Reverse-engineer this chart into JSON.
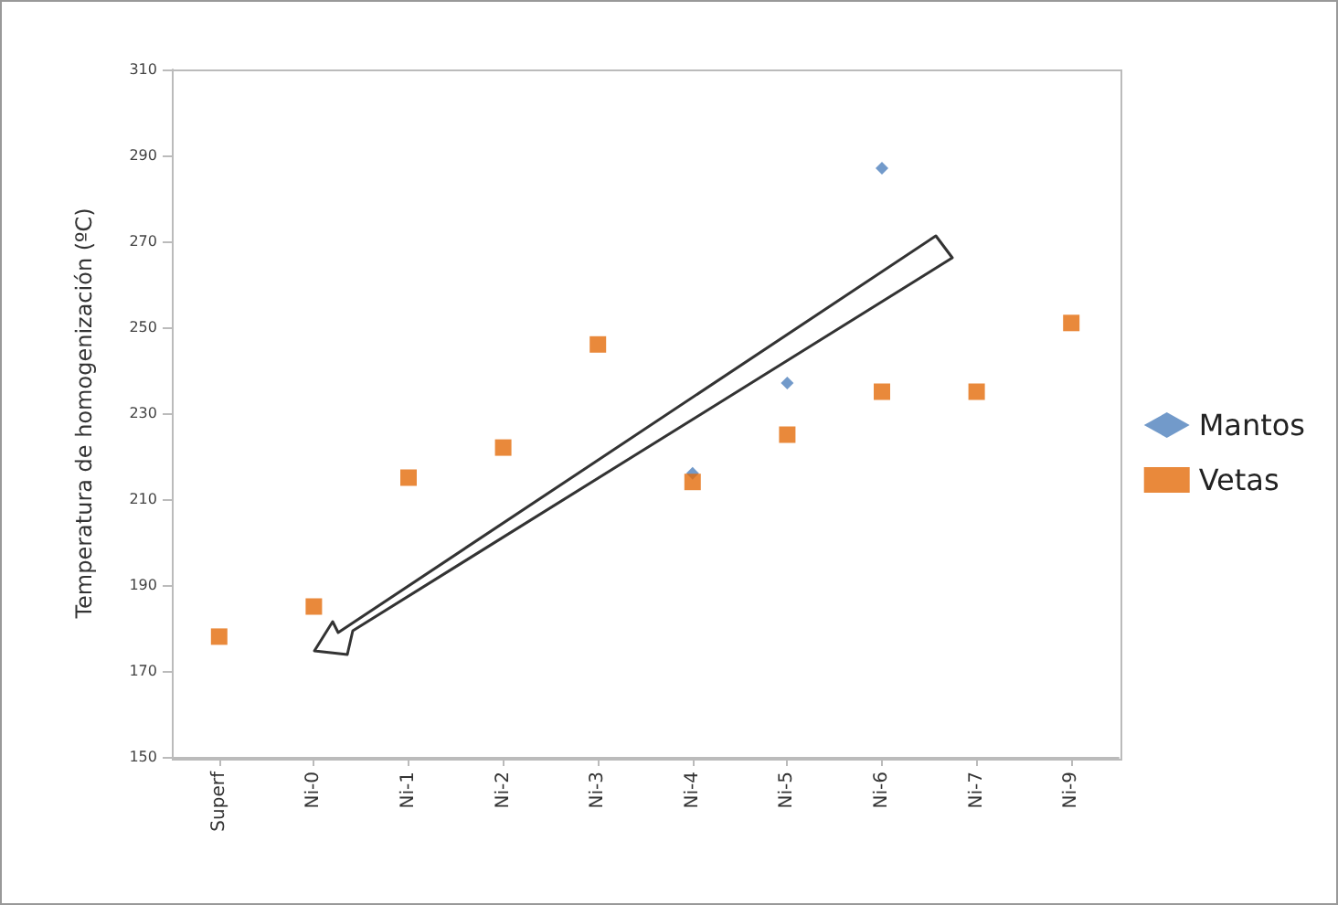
{
  "chart_data": {
    "type": "scatter",
    "ylabel": "Temperatura de homogenización (ºC)",
    "categories": [
      "Superf",
      "Ni-0",
      "Ni-1",
      "Ni-2",
      "Ni-3",
      "Ni-4",
      "Ni-5",
      "Ni-6",
      "Ni-7",
      "Ni-9"
    ],
    "series": [
      {
        "name": "Mantos",
        "color": "#4f81bd",
        "marker": "diamond",
        "values": [
          null,
          null,
          null,
          null,
          null,
          216,
          237,
          287,
          null,
          null
        ]
      },
      {
        "name": "Vetas",
        "color": "#e46c0a",
        "marker": "square",
        "values": [
          178,
          185,
          215,
          222,
          246,
          214,
          225,
          235,
          235,
          251
        ]
      }
    ],
    "ylim": [
      150,
      310
    ],
    "yticks": [
      150,
      170,
      190,
      210,
      230,
      250,
      270,
      290,
      310
    ],
    "grid": false,
    "legend": "right"
  }
}
